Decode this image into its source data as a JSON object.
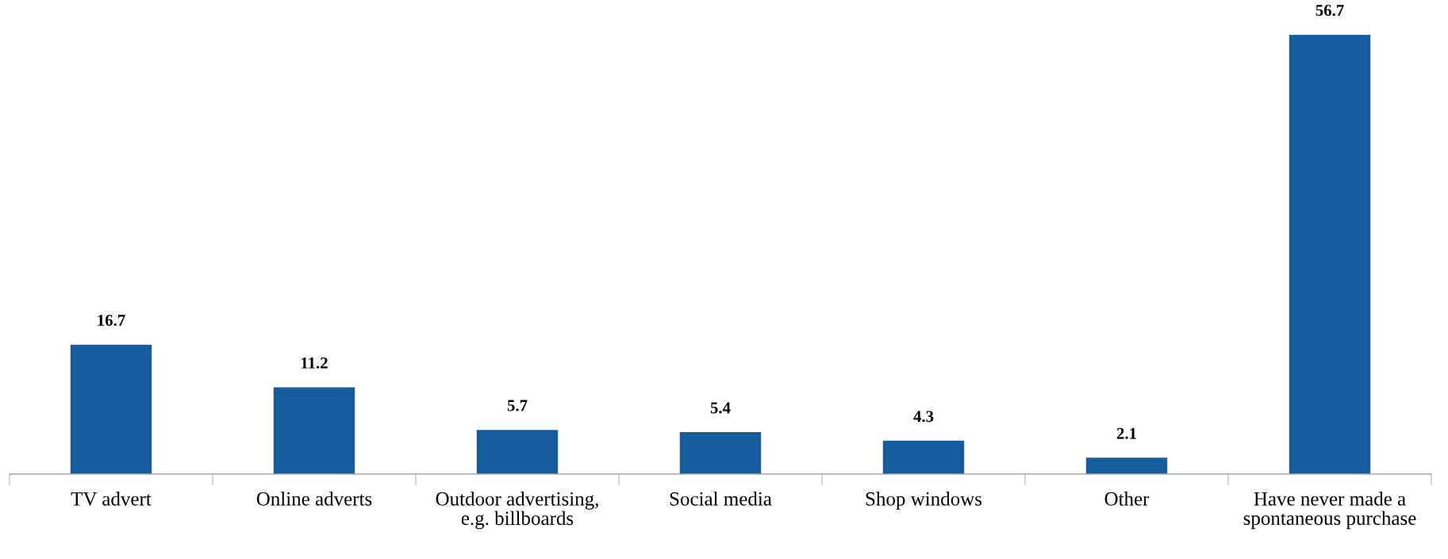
{
  "chart_data": {
    "type": "bar",
    "categories": [
      "TV advert",
      "Online adverts",
      "Outdoor advertising,\ne.g. billboards",
      "Social media",
      "Shop windows",
      "Other",
      "Have never made a\nspontaneous purchase"
    ],
    "values": [
      16.7,
      11.2,
      5.7,
      5.4,
      4.3,
      2.1,
      56.7
    ],
    "color": "#175c9c",
    "data_labels": true,
    "grid": false
  }
}
